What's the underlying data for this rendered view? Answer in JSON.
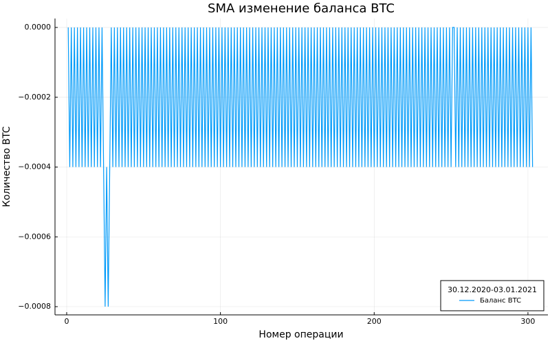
{
  "chart_data": {
    "type": "line",
    "title": "SMA изменение баланса BTC",
    "x_label": "Номер операции",
    "y_label": "Количество BTC",
    "legend_title": "30.12.2020-03.01.2021",
    "legend_position": "bottom-right",
    "grid": true,
    "xlim": [
      -7.6,
      313
    ],
    "ylim": [
      -0.0008236,
      2.56e-05
    ],
    "xticks": [
      0,
      100,
      200,
      300
    ],
    "yticks": [
      {
        "value": 0,
        "label": "0.0000"
      },
      {
        "value": -0.0002,
        "label": "−0.0002"
      },
      {
        "value": -0.0004,
        "label": "−0.0004"
      },
      {
        "value": -0.0006,
        "label": "−0.0006"
      },
      {
        "value": -0.0008,
        "label": "−0.0008"
      }
    ],
    "x": [
      1,
      2,
      3,
      4,
      5,
      6,
      7,
      8,
      9,
      10,
      11,
      12,
      13,
      14,
      15,
      16,
      17,
      18,
      19,
      20,
      21,
      22,
      23,
      24,
      25,
      26,
      27,
      28,
      29,
      30,
      31,
      32,
      33,
      34,
      35,
      36,
      37,
      38,
      39,
      40,
      41,
      42,
      43,
      44,
      45,
      46,
      47,
      48,
      49,
      50,
      51,
      52,
      53,
      54,
      55,
      56,
      57,
      58,
      59,
      60,
      61,
      62,
      63,
      64,
      65,
      66,
      67,
      68,
      69,
      70,
      71,
      72,
      73,
      74,
      75,
      76,
      77,
      78,
      79,
      80,
      81,
      82,
      83,
      84,
      85,
      86,
      87,
      88,
      89,
      90,
      91,
      92,
      93,
      94,
      95,
      96,
      97,
      98,
      99,
      100,
      101,
      102,
      103,
      104,
      105,
      106,
      107,
      108,
      109,
      110,
      111,
      112,
      113,
      114,
      115,
      116,
      117,
      118,
      119,
      120,
      121,
      122,
      123,
      124,
      125,
      126,
      127,
      128,
      129,
      130,
      131,
      132,
      133,
      134,
      135,
      136,
      137,
      138,
      139,
      140,
      141,
      142,
      143,
      144,
      145,
      146,
      147,
      148,
      149,
      150,
      151,
      152,
      153,
      154,
      155,
      156,
      157,
      158,
      159,
      160,
      161,
      162,
      163,
      164,
      165,
      166,
      167,
      168,
      169,
      170,
      171,
      172,
      173,
      174,
      175,
      176,
      177,
      178,
      179,
      180,
      181,
      182,
      183,
      184,
      185,
      186,
      187,
      188,
      189,
      190,
      191,
      192,
      193,
      194,
      195,
      196,
      197,
      198,
      199,
      200,
      201,
      202,
      203,
      204,
      205,
      206,
      207,
      208,
      209,
      210,
      211,
      212,
      213,
      214,
      215,
      216,
      217,
      218,
      219,
      220,
      221,
      222,
      223,
      224,
      225,
      226,
      227,
      228,
      229,
      230,
      231,
      232,
      233,
      234,
      235,
      236,
      237,
      238,
      239,
      240,
      241,
      242,
      243,
      244,
      245,
      246,
      247,
      248,
      249,
      250,
      251,
      252,
      253,
      254,
      255,
      256,
      257,
      258,
      259,
      260,
      261,
      262,
      263,
      264,
      265,
      266,
      267,
      268,
      269,
      270,
      271,
      272,
      273,
      274,
      275,
      276,
      277,
      278,
      279,
      280,
      281,
      282,
      283,
      284,
      285,
      286,
      287,
      288,
      289,
      290,
      291,
      292,
      293,
      294,
      295,
      296,
      297,
      298,
      299,
      300,
      301,
      302,
      303
    ],
    "series": [
      {
        "name": "Баланс BTC",
        "color": "#009af9",
        "values": [
          0,
          -0.0004,
          0,
          -0.0004,
          0,
          -0.0004,
          0,
          -0.0004,
          0,
          -0.0004,
          0,
          -0.0004,
          0,
          -0.0004,
          0,
          -0.0004,
          0,
          -0.0004,
          0,
          -0.0004,
          0,
          -0.0004,
          0,
          -0.0004,
          -0.0008,
          -0.0004,
          -0.0008,
          -0.0004,
          0,
          -0.0004,
          0,
          -0.0004,
          0,
          -0.0004,
          0,
          -0.0004,
          0,
          -0.0004,
          0,
          -0.0004,
          0,
          -0.0004,
          0,
          -0.0004,
          0,
          -0.0004,
          0,
          -0.0004,
          0,
          -0.0004,
          0,
          -0.0004,
          0,
          -0.0004,
          0,
          -0.0004,
          0,
          -0.0004,
          0,
          -0.0004,
          0,
          -0.0004,
          0,
          -0.0004,
          0,
          -0.0004,
          0,
          -0.0004,
          0,
          -0.0004,
          0,
          -0.0004,
          0,
          -0.0004,
          0,
          -0.0004,
          0,
          -0.0004,
          0,
          -0.0004,
          0,
          -0.0004,
          0,
          -0.0004,
          0,
          -0.0004,
          0,
          -0.0004,
          0,
          -0.0004,
          0,
          -0.0004,
          0,
          -0.0004,
          0,
          -0.0004,
          0,
          -0.0004,
          0,
          -0.0004,
          0,
          -0.0004,
          0,
          -0.0004,
          0,
          -0.0004,
          0,
          -0.0004,
          0,
          -0.0004,
          0,
          -0.0004,
          0,
          -0.0004,
          0,
          -0.0004,
          0,
          -0.0004,
          0,
          -0.0004,
          0,
          -0.0004,
          0,
          -0.0004,
          0,
          -0.0004,
          0,
          -0.0004,
          0,
          -0.0004,
          0,
          -0.0004,
          0,
          -0.0004,
          0,
          -0.0004,
          0,
          -0.0004,
          0,
          -0.0004,
          0,
          -0.0004,
          0,
          -0.0004,
          0,
          -0.0004,
          0,
          -0.0004,
          0,
          -0.0004,
          0,
          -0.0004,
          0,
          -0.0004,
          0,
          -0.0004,
          0,
          -0.0004,
          0,
          -0.0004,
          0,
          -0.0004,
          0,
          -0.0004,
          0,
          -0.0004,
          0,
          -0.0004,
          0,
          -0.0004,
          0,
          -0.0004,
          0,
          -0.0004,
          0,
          -0.0004,
          0,
          -0.0004,
          0,
          -0.0004,
          0,
          -0.0004,
          0,
          -0.0004,
          0,
          -0.0004,
          0,
          -0.0004,
          0,
          -0.0004,
          0,
          -0.0004,
          0,
          -0.0004,
          0,
          -0.0004,
          0,
          -0.0004,
          0,
          -0.0004,
          0,
          -0.0004,
          0,
          -0.0004,
          0,
          -0.0004,
          0,
          -0.0004,
          0,
          -0.0004,
          0,
          -0.0004,
          0,
          -0.0004,
          0,
          -0.0004,
          0,
          -0.0004,
          0,
          -0.0004,
          0,
          -0.0004,
          0,
          -0.0004,
          0,
          -0.0004,
          0,
          -0.0004,
          0,
          -0.0004,
          0,
          -0.0004,
          0,
          -0.0004,
          0,
          -0.0004,
          0,
          -0.0004,
          0,
          -0.0004,
          0,
          -0.0004,
          0,
          -0.0004,
          0,
          -0.0004,
          0,
          -0.0004,
          0,
          -0.0004,
          0,
          0,
          -0.0004,
          0,
          -0.0004,
          0,
          -0.0004,
          0,
          -0.0004,
          0,
          -0.0004,
          0,
          -0.0004,
          0,
          -0.0004,
          0,
          -0.0004,
          0,
          -0.0004,
          0,
          -0.0004,
          0,
          -0.0004,
          0,
          -0.0004,
          0,
          -0.0004,
          0,
          -0.0004,
          0,
          -0.0004,
          0,
          -0.0004,
          0,
          -0.0004,
          0,
          -0.0004,
          0,
          -0.0004,
          0,
          -0.0004,
          0,
          -0.0004,
          0,
          -0.0004,
          0,
          -0.0004,
          0,
          -0.0004,
          0,
          -0.0004,
          0,
          -0.0004
        ]
      }
    ]
  }
}
